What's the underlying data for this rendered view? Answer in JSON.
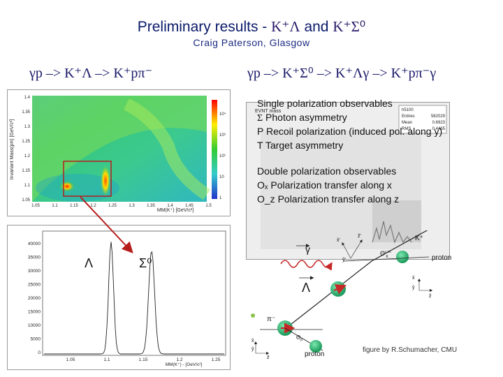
{
  "title": {
    "text": "Preliminary results - ",
    "part1": "K⁺Λ",
    "conj": " and ",
    "part2": "K⁺Σ⁰"
  },
  "subtitle": "Craig Paterson, Glasgow",
  "reactions": {
    "left": "γp –> K⁺Λ –> K⁺pπ⁻",
    "right": "γp –> K⁺Σ⁰ –> K⁺Λγ –> K⁺pπ⁻γ"
  },
  "heatmap": {
    "ylabel": "Invariant Mass(pπ) [GeV/c²]",
    "xlabel": "MM(K⁺) [GeV/c²]",
    "xticks": [
      "1.05",
      "1.1",
      "1.15",
      "1.2",
      "1.25",
      "1.3",
      "1.35",
      "1.4",
      "1.45",
      "1.5"
    ],
    "yticks": [
      "1.4",
      "1.35",
      "1.3",
      "1.25",
      "1.2",
      "1.15",
      "1.1",
      "1.05"
    ],
    "zticks": [
      "10⁴",
      "10³",
      "10²",
      "10",
      "1"
    ]
  },
  "histogram": {
    "xlabel": "MM(K⁺) - [GeV/c²]",
    "xticks": [
      "1.05",
      "1.1",
      "1.15",
      "1.2",
      "1.25"
    ],
    "yticks": [
      "40000",
      "35000",
      "30000",
      "25000",
      "20000",
      "15000",
      "10000",
      "5000",
      "0"
    ],
    "label_lambda": "Λ",
    "label_sigma": "Σ⁰"
  },
  "stats_box": {
    "name": "EVNT mass",
    "id": "h5100",
    "entries_label": "Entries",
    "entries": "582029",
    "mean_label": "Mean",
    "mean": "0.6923",
    "rms_label": "RMS",
    "rms": "0.4465"
  },
  "observables": {
    "single_head": "Single polarization observables",
    "single": [
      {
        "sym": "Σ",
        "text": " Photon asymmetry"
      },
      {
        "sym": "P",
        "text": " Recoil polarization (induced pol. along y)"
      },
      {
        "sym": "T",
        "text": " Target asymmetry"
      }
    ],
    "double_head": "Double polarization observables",
    "double": [
      {
        "sym": "Oₓ",
        "text": " Polarization transfer along x"
      },
      {
        "sym": "O_z",
        "text": " Polarization transfer along z"
      }
    ]
  },
  "diagram": {
    "label_gamma": "γ",
    "label_kplus": "K⁺",
    "label_proton_top": "proton",
    "label_theta_cm": "Θ",
    "label_theta_sup": "c.m.",
    "label_theta_sub": "K",
    "label_lambda": "Λ",
    "label_pi": "π⁻",
    "label_proton_bottom": "proton",
    "label_theta_p": "Θ",
    "label_theta_p_sub": "p",
    "axis_x": "x̂",
    "axis_y": "ŷ",
    "axis_z": "ẑ",
    "axis_xp": "x̂'",
    "axis_yp": "ŷ'",
    "axis_zp": "ẑ'"
  },
  "credit": "figure by R.Schumacher, CMU"
}
